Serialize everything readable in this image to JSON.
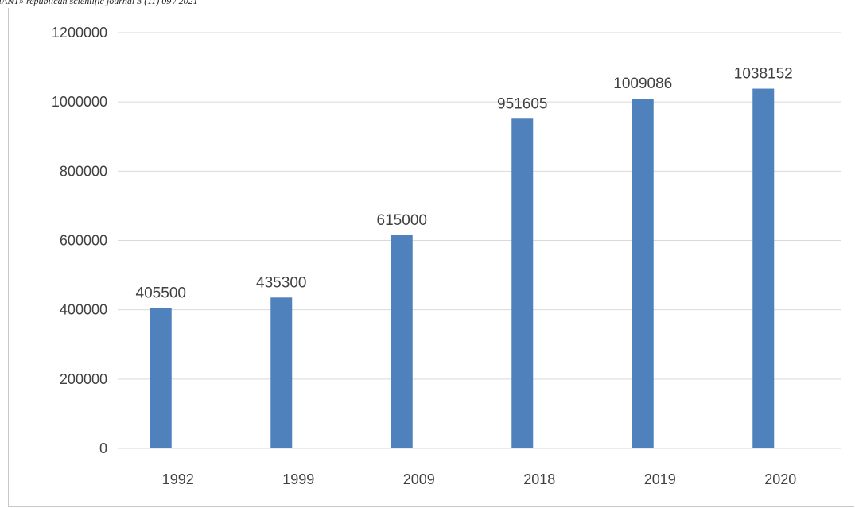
{
  "header": {
    "text": "IANT» republican scientific journal 3 (11) 09 / 2021"
  },
  "chart_data": {
    "type": "bar",
    "title": "",
    "xlabel": "",
    "ylabel": "",
    "categories": [
      "1992",
      "1999",
      "2009",
      "2018",
      "2019",
      "2020"
    ],
    "values": [
      405500,
      435300,
      615000,
      951605,
      1009086,
      1038152
    ],
    "ylim": [
      0,
      1200000
    ],
    "yticks": [
      0,
      200000,
      400000,
      600000,
      800000,
      1000000,
      1200000
    ],
    "grid": true,
    "legend": "none",
    "bar_color": "#4f81bd",
    "grid_color": "#d9d9d9"
  }
}
